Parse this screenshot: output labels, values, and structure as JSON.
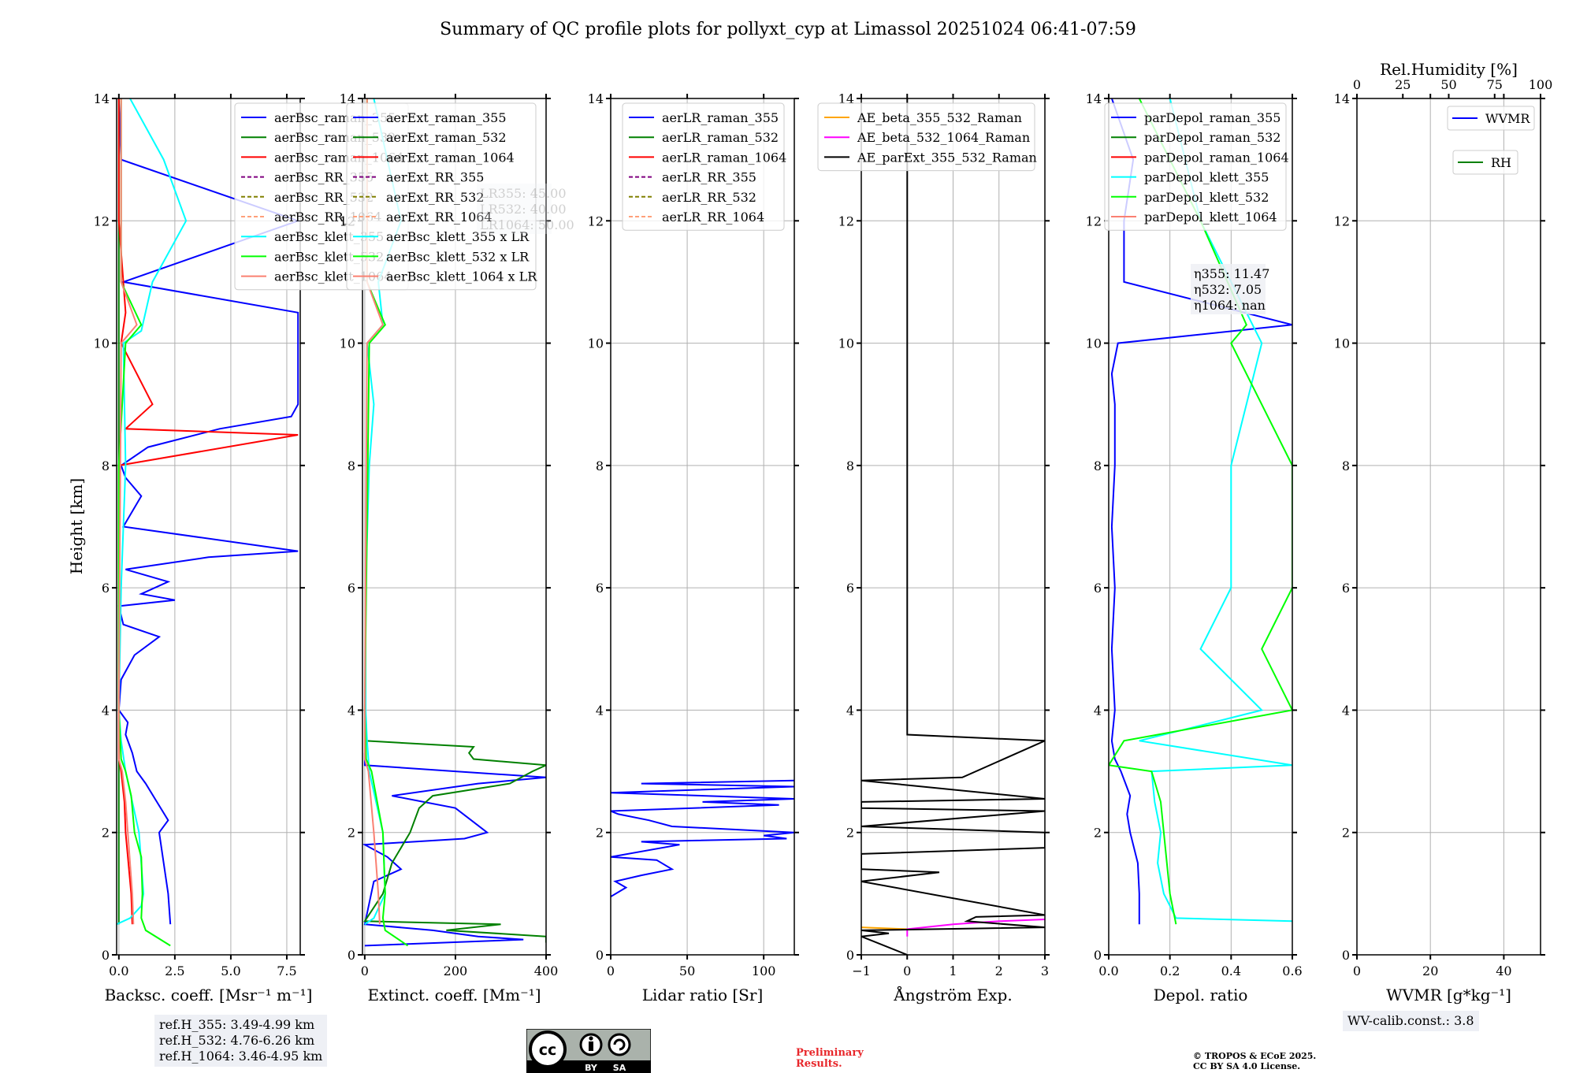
{
  "title": "Summary of QC profile plots for pollyxt_cyp at Limassol 20251024 06:41-07:59",
  "y_axis": {
    "label": "Height [km]",
    "range": [
      0,
      14
    ],
    "ticks": [
      0,
      2,
      4,
      6,
      8,
      10,
      12,
      14
    ]
  },
  "chart_data": [
    {
      "type": "line",
      "id": "backscatter",
      "xlabel": "Backsc. coeff. [Msr⁻¹ m⁻¹]",
      "xlim": [
        -0.1,
        8.1
      ],
      "xticks": [
        0.0,
        2.5,
        5.0,
        7.5
      ],
      "xtick_labels": [
        "0.0",
        "2.5",
        "5.0",
        "7.5"
      ],
      "grid": true,
      "legend_position": "top-right",
      "series": [
        {
          "name": "aerBsc_raman_355",
          "color": "#0000ff",
          "dash": false,
          "height_km": [
            0.5,
            1.0,
            1.5,
            2.0,
            2.2,
            2.5,
            2.8,
            3.0,
            3.3,
            3.6,
            3.8,
            4.0,
            4.5,
            4.9,
            5.2,
            5.4,
            5.7,
            5.8,
            5.9,
            6.1,
            6.3,
            6.5,
            6.6,
            7.0,
            7.5,
            7.8,
            8.0,
            8.3,
            8.6,
            8.8,
            9.0,
            9.6,
            10.3,
            10.5,
            11.0,
            12.0,
            13.0,
            14.0
          ],
          "values": [
            2.3,
            2.2,
            2.0,
            1.8,
            2.2,
            1.7,
            1.2,
            0.8,
            0.6,
            0.3,
            0.4,
            0.0,
            0.1,
            0.7,
            1.8,
            0.2,
            0.0,
            2.5,
            1.0,
            2.2,
            0.3,
            4.0,
            8.0,
            0.2,
            1.0,
            0.3,
            0.1,
            1.3,
            4.5,
            7.7,
            8.0,
            8.0,
            8.0,
            8.0,
            0.2,
            8.0,
            0.1,
            0.0
          ]
        },
        {
          "name": "aerBsc_raman_532",
          "color": "#008000",
          "dash": false,
          "height_km": [
            0.5,
            3.0,
            14.0
          ],
          "values": [
            0.0,
            0.0,
            0.0
          ]
        },
        {
          "name": "aerBsc_raman_1064",
          "color": "#ff0000",
          "dash": false,
          "height_km": [
            0.5,
            1.0,
            2.0,
            2.5,
            3.0,
            3.2,
            4.0,
            8.0,
            8.5,
            8.6,
            9.0,
            10.0,
            10.5,
            12.0,
            14.0
          ],
          "values": [
            0.6,
            0.55,
            0.3,
            0.25,
            0.1,
            0.0,
            0.0,
            0.0,
            8.0,
            0.3,
            1.5,
            0.1,
            0.3,
            0.0,
            0.0
          ]
        },
        {
          "name": "aerBsc_RR_355",
          "color": "#800080",
          "dash": true,
          "height_km": [],
          "values": []
        },
        {
          "name": "aerBsc_RR_532",
          "color": "#808000",
          "dash": true,
          "height_km": [],
          "values": []
        },
        {
          "name": "aerBsc_RR_1064",
          "color": "#ffa07a",
          "dash": true,
          "height_km": [],
          "values": []
        },
        {
          "name": "aerBsc_klett_355",
          "color": "#00ffff",
          "dash": false,
          "height_km": [
            0.5,
            0.6,
            0.8,
            1.0,
            2.0,
            3.0,
            3.5,
            4.0,
            6.0,
            8.0,
            10.0,
            10.2,
            11.0,
            12.0,
            13.0,
            14.0
          ],
          "values": [
            -0.1,
            0.5,
            1.0,
            1.1,
            0.9,
            0.3,
            0.1,
            0.0,
            0.1,
            0.3,
            0.2,
            1.0,
            1.5,
            3.0,
            2.0,
            0.5
          ]
        },
        {
          "name": "aerBsc_klett_532",
          "color": "#00ff00",
          "dash": false,
          "height_km": [
            0.15,
            0.4,
            0.6,
            1.0,
            1.6,
            2.0,
            2.6,
            3.0,
            3.2,
            4.0,
            8.0,
            10.0,
            10.3,
            11.0,
            14.0
          ],
          "values": [
            2.3,
            1.2,
            1.0,
            1.05,
            1.0,
            0.7,
            0.55,
            0.3,
            0.1,
            0.0,
            0.0,
            0.3,
            1.0,
            0.1,
            0.1
          ]
        },
        {
          "name": "aerBsc_klett_1064",
          "color": "#fa8072",
          "dash": false,
          "height_km": [
            0.5,
            1.0,
            2.0,
            2.5,
            3.0,
            3.2,
            4.0,
            10.0,
            10.3,
            11.0,
            14.0
          ],
          "values": [
            0.65,
            0.6,
            0.4,
            0.3,
            0.15,
            0.0,
            0.0,
            0.1,
            0.8,
            0.1,
            0.1
          ]
        }
      ]
    },
    {
      "type": "line",
      "id": "extinction",
      "xlabel": "Extinct. coeff. [Mm⁻¹]",
      "xlim": [
        -5,
        400
      ],
      "xticks": [
        0,
        200,
        400
      ],
      "xtick_labels": [
        "0",
        "200",
        "400"
      ],
      "grid": true,
      "legend_position": "top-right",
      "annotation": [
        "LR355: 45.00",
        "LR532: 40.00",
        "LR1064: 50.00"
      ],
      "series": [
        {
          "name": "aerExt_raman_355",
          "color": "#0000ff",
          "dash": false,
          "height_km": [
            0.15,
            0.25,
            0.3,
            0.4,
            0.5,
            1.2,
            1.4,
            1.6,
            1.8,
            1.9,
            2.0,
            2.4,
            2.6,
            2.8,
            2.9,
            3.0,
            3.1,
            3.3
          ],
          "values": [
            0,
            350,
            250,
            150,
            0,
            20,
            80,
            50,
            0,
            220,
            270,
            200,
            60,
            250,
            400,
            200,
            0,
            0
          ]
        },
        {
          "name": "aerExt_raman_532",
          "color": "#008000",
          "dash": false,
          "height_km": [
            0.2,
            0.3,
            0.4,
            0.5,
            0.55,
            1.0,
            1.5,
            2.0,
            2.4,
            2.6,
            2.8,
            3.0,
            3.1,
            3.2,
            3.3,
            3.4,
            3.5
          ],
          "values": [
            400,
            400,
            180,
            300,
            0,
            40,
            60,
            100,
            120,
            150,
            320,
            370,
            400,
            240,
            230,
            240,
            0
          ]
        },
        {
          "name": "aerExt_raman_1064",
          "color": "#ff0000",
          "dash": false,
          "height_km": [],
          "values": []
        },
        {
          "name": "aerExt_RR_355",
          "color": "#800080",
          "dash": true,
          "height_km": [],
          "values": []
        },
        {
          "name": "aerExt_RR_532",
          "color": "#808000",
          "dash": true,
          "height_km": [],
          "values": []
        },
        {
          "name": "aerExt_RR_1064",
          "color": "#ffa07a",
          "dash": true,
          "height_km": [],
          "values": []
        },
        {
          "name": "aerBsc_klett_355 x LR",
          "color": "#00ffff",
          "dash": false,
          "height_km": [
            0.5,
            0.6,
            1.0,
            2.0,
            3.0,
            3.5,
            4.0,
            6.0,
            8.0,
            9.0,
            10.0,
            10.3,
            11.0,
            12.0,
            13.0,
            14.0
          ],
          "values": [
            0,
            20,
            45,
            40,
            10,
            5,
            2,
            2,
            10,
            20,
            5,
            40,
            30,
            80,
            50,
            20
          ]
        },
        {
          "name": "aerBsc_klett_532 x LR",
          "color": "#00ff00",
          "dash": false,
          "height_km": [
            0.15,
            0.4,
            0.6,
            1.0,
            2.0,
            3.0,
            3.2,
            4.0,
            10.0,
            10.3,
            11.0,
            14.0
          ],
          "values": [
            95,
            45,
            40,
            45,
            40,
            15,
            3,
            0,
            10,
            45,
            5,
            5
          ]
        },
        {
          "name": "aerBsc_klett_1064 x LR",
          "color": "#fa8072",
          "dash": false,
          "height_km": [
            0.5,
            1.0,
            2.0,
            3.0,
            3.2,
            4.0,
            10.0,
            10.3,
            11.0,
            14.0
          ],
          "values": [
            33,
            30,
            20,
            8,
            0,
            0,
            5,
            40,
            5,
            5
          ]
        }
      ]
    },
    {
      "type": "line",
      "id": "lidar_ratio",
      "xlabel": "Lidar ratio [Sr]",
      "xlim": [
        0,
        120
      ],
      "xticks": [
        0,
        50,
        100
      ],
      "xtick_labels": [
        "0",
        "50",
        "100"
      ],
      "grid": true,
      "legend_position": "top-right",
      "series": [
        {
          "name": "aerLR_raman_355",
          "color": "#0000ff",
          "dash": false,
          "height_km": [
            0.95,
            1.1,
            1.2,
            1.3,
            1.4,
            1.55,
            1.6,
            1.8,
            1.85,
            1.9,
            1.95,
            2.0,
            2.1,
            2.2,
            2.3,
            2.35,
            2.45,
            2.5,
            2.55,
            2.65,
            2.75,
            2.8,
            2.85
          ],
          "values": [
            0,
            10,
            3,
            20,
            40,
            30,
            0,
            45,
            20,
            115,
            100,
            120,
            40,
            25,
            5,
            0,
            110,
            60,
            120,
            0,
            120,
            20,
            120
          ]
        },
        {
          "name": "aerLR_raman_532",
          "color": "#008000",
          "dash": false,
          "height_km": [],
          "values": []
        },
        {
          "name": "aerLR_raman_1064",
          "color": "#ff0000",
          "dash": false,
          "height_km": [],
          "values": []
        },
        {
          "name": "aerLR_RR_355",
          "color": "#800080",
          "dash": true,
          "height_km": [],
          "values": []
        },
        {
          "name": "aerLR_RR_532",
          "color": "#808000",
          "dash": true,
          "height_km": [],
          "values": []
        },
        {
          "name": "aerLR_RR_1064",
          "color": "#ffa07a",
          "dash": true,
          "height_km": [],
          "values": []
        }
      ]
    },
    {
      "type": "line",
      "id": "angstrom",
      "xlabel": "Ångström Exp.",
      "xlim": [
        -1,
        3
      ],
      "xticks": [
        -1,
        0,
        1,
        2,
        3
      ],
      "xtick_labels": [
        "−1",
        "0",
        "1",
        "2",
        "3"
      ],
      "grid": true,
      "legend_position": "top-right",
      "series": [
        {
          "name": "AE_beta_355_532_Raman",
          "color": "#ffa500",
          "dash": false,
          "height_km": [
            0.42,
            0.45
          ],
          "values": [
            0.0,
            -1.0
          ]
        },
        {
          "name": "AE_beta_532_1064_Raman",
          "color": "#ff00ff",
          "dash": false,
          "height_km": [
            0.3,
            0.42,
            0.5,
            0.55,
            0.58
          ],
          "values": [
            0.0,
            0.0,
            1.0,
            2.0,
            3.0
          ]
        },
        {
          "name": "AE_parExt_355_532_Raman",
          "color": "#000000",
          "dash": false,
          "height_km": [
            0.0,
            0.3,
            0.35,
            0.4,
            0.45,
            0.55,
            0.62,
            0.65,
            1.2,
            1.35,
            1.4,
            1.65,
            1.75,
            2.0,
            2.1,
            2.35,
            2.4,
            2.5,
            2.55,
            2.85,
            2.9,
            3.5,
            3.6,
            14.0
          ],
          "values": [
            0.0,
            -1.0,
            -0.4,
            -1.0,
            3.0,
            1.3,
            1.5,
            3.0,
            -1.0,
            0.7,
            -1.0,
            -1.0,
            3.0,
            3.0,
            -1.0,
            3.0,
            -1.0,
            -1.0,
            3.0,
            -1.0,
            1.2,
            3.0,
            0.0,
            0.0
          ]
        }
      ]
    },
    {
      "type": "line",
      "id": "depol",
      "xlabel": "Depol. ratio",
      "xlim": [
        0,
        0.6
      ],
      "xticks": [
        0.0,
        0.2,
        0.4,
        0.6
      ],
      "xtick_labels": [
        "0.0",
        "0.2",
        "0.4",
        "0.6"
      ],
      "grid": true,
      "legend_position": "top-left",
      "annotation": [
        "η355: 11.47",
        "η532: 7.05",
        "η1064: nan"
      ],
      "series": [
        {
          "name": "parDepol_raman_355",
          "color": "#0000ff",
          "dash": false,
          "height_km": [
            0.5,
            1.0,
            1.5,
            2.0,
            2.3,
            2.6,
            3.0,
            3.2,
            3.5,
            4.0,
            5.0,
            6.0,
            7.0,
            8.0,
            9.0,
            9.5,
            10.0,
            10.3,
            11.0,
            12.0,
            13.0,
            14.0
          ],
          "values": [
            0.1,
            0.1,
            0.095,
            0.07,
            0.06,
            0.07,
            0.04,
            0.02,
            0.01,
            0.02,
            0.01,
            0.02,
            0.01,
            0.02,
            0.02,
            0.01,
            0.03,
            0.6,
            0.05,
            0.05,
            0.08,
            0.01
          ]
        },
        {
          "name": "parDepol_raman_532",
          "color": "#008000",
          "dash": false,
          "height_km": [],
          "values": []
        },
        {
          "name": "parDepol_raman_1064",
          "color": "#ff0000",
          "dash": false,
          "height_km": [],
          "values": []
        },
        {
          "name": "parDepol_klett_355",
          "color": "#00ffff",
          "dash": false,
          "height_km": [
            0.55,
            0.6,
            0.8,
            1.0,
            1.5,
            2.0,
            2.5,
            3.0,
            3.1,
            3.5,
            4.0,
            5.0,
            6.0,
            8.0,
            10.0,
            12.0,
            14.0
          ],
          "values": [
            0.6,
            0.22,
            0.2,
            0.18,
            0.16,
            0.17,
            0.15,
            0.14,
            0.6,
            0.1,
            0.5,
            0.3,
            0.4,
            0.4,
            0.5,
            0.3,
            0.2
          ]
        },
        {
          "name": "parDepol_klett_532",
          "color": "#00ff00",
          "dash": false,
          "height_km": [
            0.5,
            1.0,
            1.5,
            2.0,
            2.5,
            3.0,
            3.1,
            3.5,
            4.0,
            5.0,
            6.0,
            8.0,
            10.0,
            10.3,
            12.0,
            14.0
          ],
          "values": [
            0.22,
            0.2,
            0.19,
            0.18,
            0.17,
            0.14,
            0.0,
            0.05,
            0.6,
            0.5,
            0.6,
            0.6,
            0.4,
            0.45,
            0.3,
            0.1
          ]
        },
        {
          "name": "parDepol_klett_1064",
          "color": "#fa8072",
          "dash": false,
          "height_km": [],
          "values": []
        }
      ]
    },
    {
      "type": "line",
      "id": "wvmr",
      "xlabel": "WVMR [g*kg⁻¹]",
      "xlim": [
        0,
        50
      ],
      "xticks": [
        0,
        20,
        40
      ],
      "xtick_labels": [
        "0",
        "20",
        "40"
      ],
      "top_xlabel": "Rel.Humidity [%]",
      "top_xlim": [
        0,
        100
      ],
      "top_xticks": [
        0,
        25,
        50,
        75,
        100
      ],
      "top_xtick_labels": [
        "0",
        "25",
        "50",
        "75",
        "100"
      ],
      "grid": true,
      "series": [
        {
          "name": "WVMR",
          "color": "#0000ff",
          "dash": false,
          "height_km": [],
          "values": []
        },
        {
          "name": "RH",
          "color": "#008000",
          "dash": false,
          "height_km": [],
          "values": []
        }
      ]
    }
  ],
  "notes": {
    "ref_heights": [
      "ref.H_355: 3.49-4.99 km",
      "ref.H_532: 4.76-6.26 km",
      "ref.H_1064: 3.46-4.95 km"
    ],
    "wv_calib": "WV-calib.const.: 3.8",
    "preliminary": [
      "Preliminary",
      "Results."
    ],
    "copyright": [
      "© TROPOS & ECoE 2025.",
      "CC BY SA 4.0 License."
    ],
    "license_badge": {
      "by": "BY",
      "sa": "SA",
      "cc": "cc"
    }
  }
}
